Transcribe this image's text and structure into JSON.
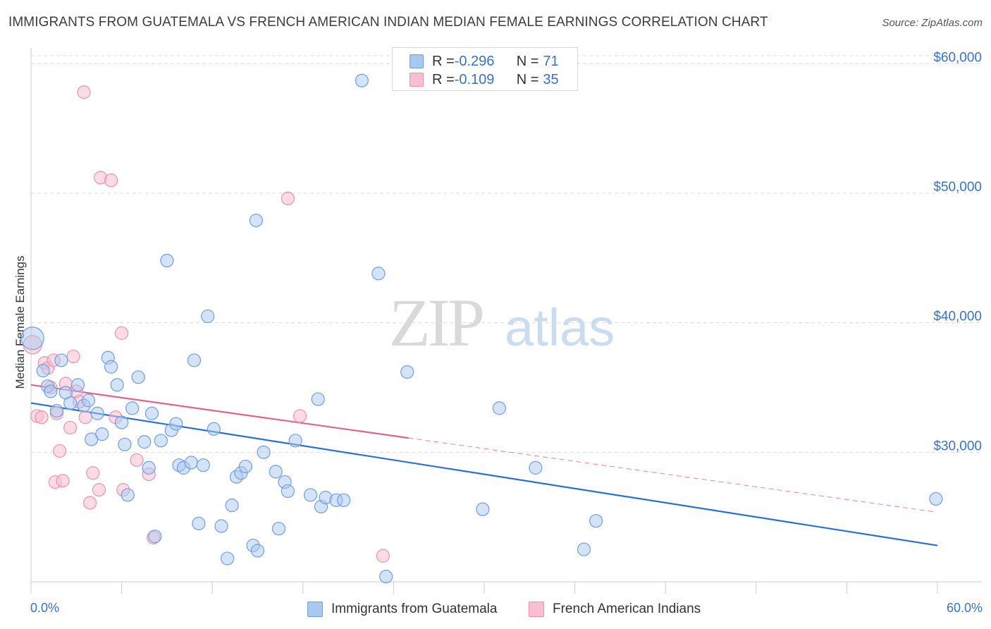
{
  "header": {
    "title": "IMMIGRANTS FROM GUATEMALA VS FRENCH AMERICAN INDIAN MEDIAN FEMALE EARNINGS CORRELATION CHART",
    "source": "Source: ZipAtlas.com"
  },
  "watermark": {
    "zip": "ZIP",
    "atlas": "atlas"
  },
  "stats_legend": {
    "rows": [
      {
        "r_label": "R = ",
        "r_value": "-0.296",
        "n_label": "N = ",
        "n_value": "71"
      },
      {
        "r_label": "R = ",
        "r_value": "-0.109",
        "n_label": "N = ",
        "n_value": "35"
      }
    ]
  },
  "chart_data": {
    "type": "scatter",
    "title": "IMMIGRANTS FROM GUATEMALA VS FRENCH AMERICAN INDIAN MEDIAN FEMALE EARNINGS CORRELATION CHART",
    "xlabel": "",
    "ylabel": "Median Female Earnings",
    "xlim": [
      0,
      60
    ],
    "ylim": [
      20000,
      61000
    ],
    "x_tick_labels": [
      "0.0%",
      "60.0%"
    ],
    "y_ticks": [
      30000,
      40000,
      50000,
      60000
    ],
    "y_tick_labels": [
      "$30,000",
      "$40,000",
      "$50,000",
      "$60,000"
    ],
    "grid": "horizontal dashed",
    "legend_position": "bottom",
    "colors": {
      "guatemala_fill": "#a9c8ef",
      "guatemala_stroke": "#6e9fe0",
      "guatemala_line": "#2b6fd0",
      "french_fill": "#f7bfd0",
      "french_stroke": "#eb92ad",
      "french_line": "#e0648c",
      "tick_label": "#3a72c4",
      "grid": "#dcdcdc"
    },
    "series": [
      {
        "name": "Immigrants from Guatemala",
        "points": [
          [
            0.1,
            38800,
            16
          ],
          [
            0.8,
            36300,
            9
          ],
          [
            1.1,
            35100,
            9
          ],
          [
            1.3,
            34700,
            9
          ],
          [
            1.7,
            33200,
            9
          ],
          [
            2.0,
            37100,
            9
          ],
          [
            2.3,
            34600,
            9
          ],
          [
            2.6,
            33800,
            9
          ],
          [
            3.1,
            35200,
            9
          ],
          [
            3.5,
            33600,
            9
          ],
          [
            3.8,
            34000,
            9
          ],
          [
            4.0,
            31000,
            9
          ],
          [
            4.4,
            33000,
            9
          ],
          [
            4.7,
            31400,
            9
          ],
          [
            5.1,
            37300,
            9
          ],
          [
            5.3,
            36600,
            9
          ],
          [
            5.7,
            35200,
            9
          ],
          [
            6.0,
            32300,
            9
          ],
          [
            6.2,
            30600,
            9
          ],
          [
            6.4,
            26700,
            9
          ],
          [
            6.7,
            33400,
            9
          ],
          [
            7.1,
            35800,
            9
          ],
          [
            7.5,
            30800,
            9
          ],
          [
            7.8,
            28800,
            9
          ],
          [
            8.0,
            33000,
            9
          ],
          [
            8.2,
            23500,
            9
          ],
          [
            8.6,
            30900,
            9
          ],
          [
            9.0,
            44800,
            9
          ],
          [
            9.3,
            31700,
            9
          ],
          [
            9.6,
            32200,
            9
          ],
          [
            9.8,
            29000,
            9
          ],
          [
            10.1,
            28800,
            9
          ],
          [
            10.6,
            29200,
            9
          ],
          [
            10.8,
            37100,
            9
          ],
          [
            11.1,
            24500,
            9
          ],
          [
            11.4,
            29000,
            9
          ],
          [
            11.7,
            40500,
            9
          ],
          [
            12.1,
            31800,
            9
          ],
          [
            12.6,
            24300,
            9
          ],
          [
            13.0,
            21800,
            9
          ],
          [
            13.3,
            25900,
            9
          ],
          [
            13.6,
            28100,
            9
          ],
          [
            13.9,
            28400,
            9
          ],
          [
            14.2,
            28900,
            9
          ],
          [
            14.7,
            22800,
            9
          ],
          [
            15.0,
            22400,
            9
          ],
          [
            14.9,
            47900,
            9
          ],
          [
            15.4,
            30000,
            9
          ],
          [
            16.2,
            28500,
            9
          ],
          [
            16.4,
            24100,
            9
          ],
          [
            16.8,
            27700,
            9
          ],
          [
            17.0,
            27000,
            9
          ],
          [
            17.5,
            30900,
            9
          ],
          [
            18.5,
            26700,
            9
          ],
          [
            19.0,
            34100,
            9
          ],
          [
            19.2,
            25800,
            9
          ],
          [
            19.5,
            26500,
            9
          ],
          [
            20.2,
            26300,
            9
          ],
          [
            20.7,
            26300,
            9
          ],
          [
            21.9,
            58700,
            9
          ],
          [
            23.0,
            43800,
            9
          ],
          [
            23.5,
            20400,
            9
          ],
          [
            24.9,
            36200,
            9
          ],
          [
            29.9,
            25600,
            9
          ],
          [
            31.0,
            33400,
            9
          ],
          [
            33.4,
            28800,
            9
          ],
          [
            36.6,
            22500,
            9
          ],
          [
            37.4,
            24700,
            9
          ],
          [
            59.9,
            26400,
            9
          ]
        ],
        "trend": {
          "x": [
            0,
            60
          ],
          "y": [
            33800,
            22800
          ]
        }
      },
      {
        "name": "French American Indians",
        "points": [
          [
            0.1,
            38300,
            13
          ],
          [
            0.4,
            32800,
            9
          ],
          [
            0.7,
            32700,
            9
          ],
          [
            0.9,
            36900,
            9
          ],
          [
            1.1,
            36500,
            9
          ],
          [
            1.3,
            35000,
            9
          ],
          [
            1.5,
            37100,
            9
          ],
          [
            1.7,
            33000,
            9
          ],
          [
            1.6,
            27700,
            9
          ],
          [
            1.9,
            30100,
            9
          ],
          [
            2.1,
            27800,
            9
          ],
          [
            2.3,
            35300,
            9
          ],
          [
            2.6,
            31900,
            9
          ],
          [
            2.8,
            37400,
            9
          ],
          [
            3.0,
            34700,
            9
          ],
          [
            3.2,
            33900,
            9
          ],
          [
            3.6,
            32700,
            9
          ],
          [
            3.9,
            26100,
            9
          ],
          [
            4.1,
            28400,
            9
          ],
          [
            4.5,
            27100,
            9
          ],
          [
            3.5,
            57800,
            9
          ],
          [
            4.6,
            51200,
            9
          ],
          [
            5.3,
            51000,
            9
          ],
          [
            5.6,
            32700,
            9
          ],
          [
            6.0,
            39200,
            9
          ],
          [
            6.1,
            27100,
            9
          ],
          [
            7.0,
            29400,
            9
          ],
          [
            7.8,
            28300,
            9
          ],
          [
            8.1,
            23400,
            9
          ],
          [
            17.0,
            49600,
            9
          ],
          [
            17.8,
            32800,
            9
          ],
          [
            23.3,
            22000,
            9
          ]
        ],
        "trend": {
          "x": [
            0,
            25
          ],
          "y": [
            35200,
            31100
          ]
        },
        "trend_dashed": {
          "x": [
            25,
            59.8
          ],
          "y": [
            31100,
            25400
          ]
        }
      }
    ]
  },
  "bottom_legend": {
    "x_min_label": "0.0%",
    "x_max_label": "60.0%",
    "items": [
      {
        "label": "Immigrants from Guatemala"
      },
      {
        "label": "French American Indians"
      }
    ]
  }
}
